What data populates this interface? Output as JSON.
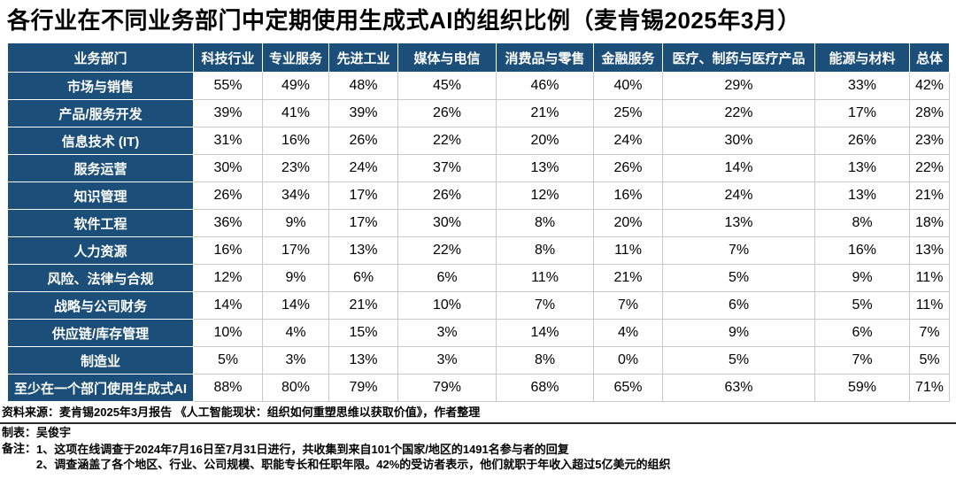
{
  "chart_data": {
    "type": "table",
    "title": "各行业在不同业务部门中定期使用生成式AI的组织比例（麦肯锡2025年3月）",
    "row_header": "业务部门",
    "unit": "%",
    "columns": [
      "科技行业",
      "专业服务",
      "先进工业",
      "媒体与电信",
      "消费品与零售",
      "金融服务",
      "医疗、制药与医疗产品",
      "能源与材料",
      "总体"
    ],
    "rows": [
      {
        "label": "市场与销售",
        "values": [
          55,
          49,
          48,
          45,
          46,
          40,
          29,
          33,
          42
        ]
      },
      {
        "label": "产品/服务开发",
        "values": [
          39,
          41,
          39,
          26,
          21,
          25,
          22,
          17,
          28
        ]
      },
      {
        "label": "信息技术 (IT)",
        "values": [
          31,
          16,
          26,
          22,
          20,
          24,
          30,
          26,
          23
        ]
      },
      {
        "label": "服务运营",
        "values": [
          30,
          23,
          24,
          37,
          13,
          26,
          14,
          13,
          22
        ]
      },
      {
        "label": "知识管理",
        "values": [
          26,
          34,
          17,
          26,
          12,
          16,
          24,
          13,
          21
        ]
      },
      {
        "label": "软件工程",
        "values": [
          36,
          9,
          17,
          30,
          8,
          20,
          13,
          8,
          18
        ]
      },
      {
        "label": "人力资源",
        "values": [
          16,
          17,
          13,
          22,
          8,
          11,
          7,
          16,
          13
        ]
      },
      {
        "label": "风险、法律与合规",
        "values": [
          12,
          9,
          6,
          6,
          11,
          21,
          5,
          9,
          11
        ]
      },
      {
        "label": "战略与公司财务",
        "values": [
          14,
          14,
          21,
          10,
          7,
          7,
          6,
          5,
          11
        ]
      },
      {
        "label": "供应链/库存管理",
        "values": [
          10,
          4,
          15,
          3,
          14,
          4,
          9,
          6,
          7
        ]
      },
      {
        "label": "制造业",
        "values": [
          5,
          3,
          13,
          3,
          8,
          0,
          5,
          7,
          5
        ]
      },
      {
        "label": "至少在一个部门使用生成式AI",
        "values": [
          88,
          80,
          79,
          79,
          68,
          65,
          63,
          59,
          71
        ]
      }
    ],
    "layout": {
      "grid": true,
      "header_style": "dark-blue",
      "value_align": "center"
    }
  },
  "footer": {
    "source": "资料来源：麦肯锡2025年3月报告 《人工智能现状：组织如何重塑思维以获取价值》，作者整理",
    "author": "制表：吴俊宇",
    "notes_label": "备注：",
    "note1": "1、这项在线调查于2024年7月16日至7月31日进行，共收集到来自101个国家/地区的1491名参与者的回复",
    "note2": "2、调查涵盖了各个地区、行业、公司规模、职能专长和任职年限。42%的受访者表示，他们就职于年收入超过5亿美元的组织"
  },
  "colors": {
    "header_bg": "#1b4e79",
    "grid": "#c9c9c9",
    "header_text": "#ffffff",
    "text": "#000000"
  }
}
